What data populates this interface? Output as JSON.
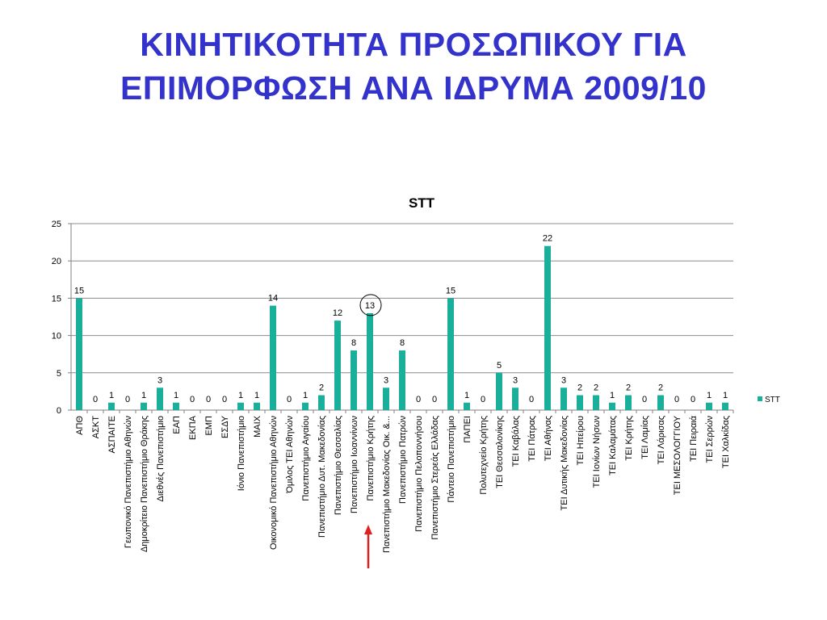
{
  "slide": {
    "title_line1": "ΚΙΝΗΤΙΚΟΤΗΤΑ ΠΡΟΣΩΠΙΚΟΥ ΓΙΑ",
    "title_line2": "ΕΠΙΜΟΡΦΩΣΗ ΑΝΑ ΙΔΡΥΜΑ 2009/10"
  },
  "chart_data": {
    "type": "bar",
    "title": "STT",
    "xlabel": "",
    "ylabel": "",
    "ylim": [
      0,
      25
    ],
    "yticks": [
      0,
      5,
      10,
      15,
      20,
      25
    ],
    "grid": true,
    "legend_position": "right",
    "bar_color": "#1aaf9a",
    "highlight_color": "#e02020",
    "highlight_category": "Πανεπιστήμιο Κρήτης",
    "categories": [
      "ΑΠΘ",
      "ΑΣΚΤ",
      "ΑΣΠΑΙΤΕ",
      "Γεωπονικό Πανεπιστήμιο Αθηνών",
      "Δημοκρίτειο Πανεπιστήμιο Θράκης",
      "Διεθνές Πανεπιστήμιο",
      "ΕΑΠ",
      "ΕΚΠΑ",
      "ΕΜΠ",
      "ΕΣΔΥ",
      "Ιόνιο Πανεπιστήμιο",
      "ΜΑΙΧ",
      "Οικονομικό Πανεπιστήμιο Αθηνών",
      "Όμιλος ΤΕΙ Αθηνών",
      "Πανεπιστήμιο Αιγαίου",
      "Πανεπιστήμιο Δυτ. Μακεδονίας",
      "Πανεπιστήμιο Θεσσαλίας",
      "Πανεπιστήμιο Ιωαννίνων",
      "Πανεπιστήμιο Κρήτης",
      "Πανεπιστήμιο Μακεδονίας Οικ. &...",
      "Πανεπιστήμιο Πατρών",
      "Πανεπιστήμιο Πελοποννήσου",
      "Πανεπιστήμιο Στερεάς Ελλάδας",
      "Πάντειο Πανεπιστήμιο",
      "ΠΑΠΕΙ",
      "Πολυτεχνείο Κρήτης",
      "ΤΕΙ Θεσσαλονίκης",
      "ΤΕΙ Καβάλας",
      "ΤΕΙ Πάτρας",
      "ΤΕΙ Αθήνας",
      "ΤΕΙ Δυτικής Μακεδονίας",
      "ΤΕΙ Ηπείρου",
      "ΤΕΙ Ιονίων Νήσων",
      "ΤΕΙ Καλαμάτας",
      "ΤΕΙ Κρήτης",
      "ΤΕΙ Λαμίας",
      "ΤΕΙ Λάρισας",
      "ΤΕΙ ΜΕΣΟΛΟΓΓΙΟΥ",
      "ΤΕΙ Πειραιά",
      "ΤΕΙ Σερρών",
      "ΤΕΙ Χαλκίδας"
    ],
    "series": [
      {
        "name": "STT",
        "values": [
          15,
          0,
          1,
          0,
          1,
          3,
          1,
          0,
          0,
          0,
          1,
          1,
          14,
          0,
          1,
          2,
          12,
          8,
          13,
          3,
          8,
          0,
          0,
          15,
          1,
          0,
          5,
          3,
          0,
          22,
          3,
          2,
          2,
          1,
          2,
          0,
          2,
          0,
          0,
          1,
          1
        ]
      }
    ]
  }
}
